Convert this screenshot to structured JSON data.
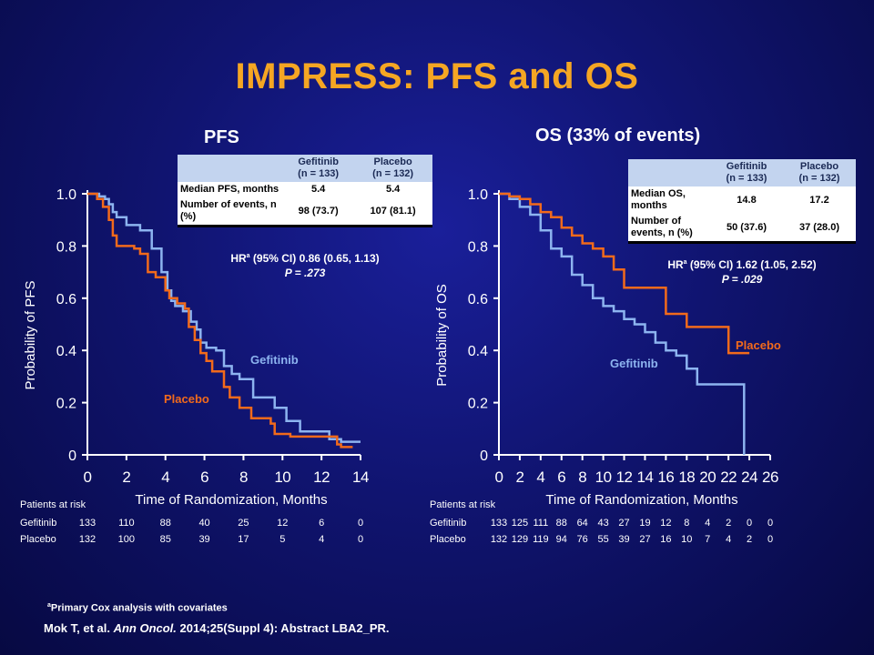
{
  "slide": {
    "title": "IMPRESS: PFS and OS",
    "footnote_mark": "a",
    "footnote_text": "Primary Cox analysis with covariates",
    "citation_authors": "Mok T, et al. ",
    "citation_journal": "Ann Oncol.",
    "citation_rest": " 2014;25(Suppl 4): Abstract LBA2_PR."
  },
  "pfs": {
    "panel_title": "PFS",
    "table": {
      "col1": "Gefitinib\n(n = 133)",
      "col2": "Placebo\n(n = 132)",
      "rows": [
        {
          "label": "Median PFS, months",
          "v1": "5.4",
          "v2": "5.4"
        },
        {
          "label": "Number of events, n (%)",
          "v1": "98 (73.7)",
          "v2": "107 (81.1)"
        }
      ]
    },
    "hr_prefix": "HR",
    "hr_sup": "a",
    "hr_text": " (95% CI) 0.86 (0.65, 1.13)",
    "p_text": "P = .273",
    "risk": {
      "title": "Patients at risk",
      "rows": [
        {
          "label": "Gefitinib",
          "values": [
            "133",
            "110",
            "88",
            "40",
            "25",
            "12",
            "6",
            "0"
          ]
        },
        {
          "label": "Placebo",
          "values": [
            "132",
            "100",
            "85",
            "39",
            "17",
            "5",
            "4",
            "0"
          ]
        }
      ]
    }
  },
  "os": {
    "panel_title": "OS (33%  of events)",
    "table": {
      "col1": "Gefitinib\n(n = 133)",
      "col2": "Placebo\n(n = 132)",
      "rows": [
        {
          "label": "Median OS, months",
          "v1": "14.8",
          "v2": "17.2"
        },
        {
          "label": "Number of events, n (%)",
          "v1": "50 (37.6)",
          "v2": "37 (28.0)"
        }
      ]
    },
    "hr_prefix": "HR",
    "hr_sup": "a",
    "hr_text": " (95% CI) 1.62 (1.05, 2.52)",
    "p_text": "P = .029",
    "risk": {
      "title": "Patients at risk",
      "rows": [
        {
          "label": "Gefitinib",
          "values": [
            "133",
            "125",
            "111",
            "88",
            "64",
            "43",
            "27",
            "19",
            "12",
            "8",
            "4",
            "2",
            "0",
            "0"
          ]
        },
        {
          "label": "Placebo",
          "values": [
            "132",
            "129",
            "119",
            "94",
            "76",
            "55",
            "39",
            "27",
            "16",
            "10",
            "7",
            "4",
            "2",
            "0"
          ]
        }
      ]
    }
  },
  "colors": {
    "gefitinib": "#8db4f0",
    "placebo": "#f26a1b",
    "title": "#f5a623",
    "axis": "#ffffff"
  },
  "chart_data": [
    {
      "type": "line",
      "step": true,
      "xlabel": "Time of Randomization, Months",
      "ylabel": "Probability of PFS",
      "xlim": [
        0,
        14
      ],
      "ylim": [
        0,
        1
      ],
      "xticks": [
        0,
        2,
        4,
        6,
        8,
        10,
        12,
        14
      ],
      "yticks": [
        0,
        0.2,
        0.4,
        0.6,
        0.8,
        1.0
      ],
      "ytick_labels": [
        "0",
        "0.2",
        "0.4",
        "0.6",
        "0.8",
        "1.0"
      ],
      "series": [
        {
          "name": "Gefitinib",
          "color": "#8db4f0",
          "x": [
            0,
            0.6,
            0.9,
            1.1,
            1.3,
            1.5,
            2.0,
            2.7,
            3.3,
            3.8,
            4.1,
            4.3,
            4.5,
            4.9,
            5.3,
            5.6,
            5.8,
            6.1,
            6.6,
            7.0,
            7.4,
            7.8,
            8.5,
            9.3,
            9.6,
            10.2,
            10.9,
            11.5,
            12.4,
            13.0,
            14.0
          ],
          "y": [
            1.0,
            0.99,
            0.98,
            0.96,
            0.93,
            0.91,
            0.88,
            0.86,
            0.79,
            0.7,
            0.63,
            0.59,
            0.57,
            0.55,
            0.51,
            0.48,
            0.43,
            0.41,
            0.4,
            0.34,
            0.31,
            0.29,
            0.22,
            0.22,
            0.18,
            0.13,
            0.09,
            0.09,
            0.06,
            0.05,
            0.05
          ]
        },
        {
          "name": "Placebo",
          "color": "#f26a1b",
          "x": [
            0,
            0.5,
            0.8,
            1.1,
            1.3,
            1.5,
            2.4,
            2.7,
            3.1,
            3.5,
            4.0,
            4.2,
            4.6,
            5.0,
            5.2,
            5.5,
            5.8,
            6.1,
            6.4,
            7.0,
            7.3,
            7.8,
            8.4,
            9.4,
            9.6,
            10.4,
            12.0,
            12.8,
            13.0,
            13.6
          ],
          "y": [
            1.0,
            0.98,
            0.95,
            0.9,
            0.84,
            0.8,
            0.79,
            0.77,
            0.7,
            0.68,
            0.63,
            0.6,
            0.58,
            0.56,
            0.49,
            0.44,
            0.39,
            0.36,
            0.32,
            0.26,
            0.22,
            0.18,
            0.14,
            0.12,
            0.08,
            0.07,
            0.07,
            0.04,
            0.03,
            0.03
          ]
        }
      ]
    },
    {
      "type": "line",
      "step": true,
      "xlabel": "Time of Randomization, Months",
      "ylabel": "Probability of OS",
      "xlim": [
        0,
        26
      ],
      "ylim": [
        0,
        1
      ],
      "xticks": [
        0,
        2,
        4,
        6,
        8,
        10,
        12,
        14,
        16,
        18,
        20,
        22,
        24,
        26
      ],
      "yticks": [
        0,
        0.2,
        0.4,
        0.6,
        0.8,
        1.0
      ],
      "ytick_labels": [
        "0",
        "0.2",
        "0.4",
        "0.6",
        "0.8",
        "1.0"
      ],
      "series": [
        {
          "name": "Gefitinib",
          "color": "#8db4f0",
          "x": [
            0,
            1.0,
            2.0,
            3.0,
            4.0,
            5.0,
            6.0,
            7.0,
            8.0,
            9.0,
            10.0,
            11.0,
            12.0,
            13.0,
            14.0,
            15.0,
            16.0,
            17.0,
            18.0,
            19.0,
            20.0,
            22.0,
            23.5
          ],
          "y": [
            1.0,
            0.98,
            0.95,
            0.92,
            0.86,
            0.79,
            0.76,
            0.69,
            0.65,
            0.6,
            0.57,
            0.55,
            0.52,
            0.5,
            0.47,
            0.43,
            0.4,
            0.38,
            0.33,
            0.27,
            0.27,
            0.27,
            0.0
          ]
        },
        {
          "name": "Placebo",
          "color": "#f26a1b",
          "x": [
            0,
            1.0,
            2.0,
            3.0,
            4.0,
            5.0,
            6.0,
            7.0,
            8.0,
            9.0,
            10.0,
            11.0,
            12.0,
            13.0,
            14.0,
            15.0,
            16.0,
            18.0,
            20.0,
            22.0,
            24.0
          ],
          "y": [
            1.0,
            0.99,
            0.98,
            0.96,
            0.93,
            0.91,
            0.87,
            0.84,
            0.81,
            0.79,
            0.76,
            0.71,
            0.64,
            0.64,
            0.64,
            0.64,
            0.54,
            0.49,
            0.49,
            0.39,
            0.39
          ]
        }
      ]
    }
  ]
}
